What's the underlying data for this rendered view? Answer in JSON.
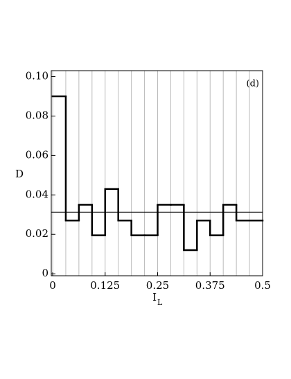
{
  "chart_data": {
    "type": "histogram",
    "annotation": "(d)",
    "x_label": "I",
    "x_label_subscript": "L",
    "y_label": "D",
    "bins": [
      0,
      0.03125,
      0.0625,
      0.09375,
      0.125,
      0.15625,
      0.1875,
      0.21875,
      0.25,
      0.28125,
      0.3125,
      0.34375,
      0.375,
      0.40625,
      0.4375,
      0.46875,
      0.5
    ],
    "values": [
      0.09,
      0.027,
      0.035,
      0.0195,
      0.043,
      0.027,
      0.0195,
      0.0195,
      0.035,
      0.035,
      0.012,
      0.027,
      0.0195,
      0.035,
      0.027,
      0.027
    ],
    "reference_line": 0.03125,
    "color": "#000000",
    "xlim": [
      0,
      0.5
    ],
    "ylim": [
      -0.001,
      0.103
    ],
    "xticks": [
      0,
      0.125,
      0.25,
      0.375,
      0.5
    ],
    "yticks": [
      0,
      0.02,
      0.04,
      0.06,
      0.08,
      {
        "value": 0.1,
        "label": "0.10"
      }
    ],
    "grid": true
  }
}
